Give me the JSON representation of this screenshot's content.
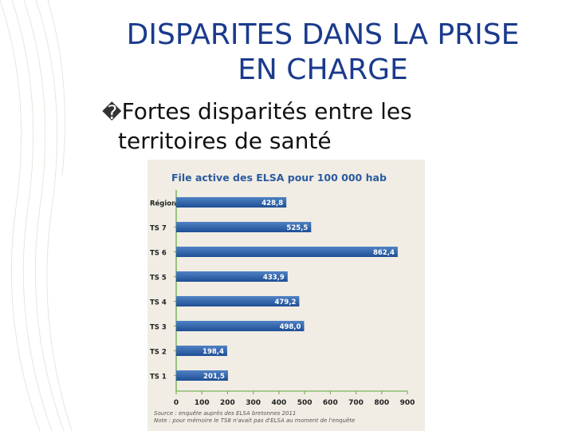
{
  "slide": {
    "title_line1": "DISPARITES DANS LA PRISE",
    "title_line2": "EN CHARGE",
    "bullet_glyph": "�",
    "bullet_line1": "Fortes disparités entre les",
    "bullet_line2": "territoires de santé"
  },
  "colors": {
    "title": "#1a3a8c",
    "chart_title": "#2a5a9e",
    "bar": "#1f4f96",
    "bar_light": "#4f82c4",
    "panel": "#f1ede4",
    "axis_tick_green": "#7bb35a",
    "deco": "#e6e6de"
  },
  "chart_data": {
    "type": "bar",
    "orientation": "horizontal",
    "title": "File active des ELSA pour 100 000 hab",
    "categories": [
      "Région",
      "TS 7",
      "TS 6",
      "TS 5",
      "TS 4",
      "TS 3",
      "TS 2",
      "TS 1"
    ],
    "values": [
      428.8,
      525.5,
      862.4,
      433.9,
      479.2,
      498.0,
      198.4,
      201.5
    ],
    "value_labels": [
      "428,8",
      "525,5",
      "862,4",
      "433,9",
      "479,2",
      "498,0",
      "198,4",
      "201,5"
    ],
    "x_ticks": [
      "0",
      "100",
      "200",
      "300",
      "400",
      "500",
      "600",
      "700",
      "800",
      "900"
    ],
    "xlim": [
      0,
      900
    ],
    "source_line1": "Source : enquête auprès des ELSA bretonnes 2011",
    "source_line2": "Note : pour mémoire le TS8 n'avait pas d'ELSA au moment de l'enquête"
  }
}
